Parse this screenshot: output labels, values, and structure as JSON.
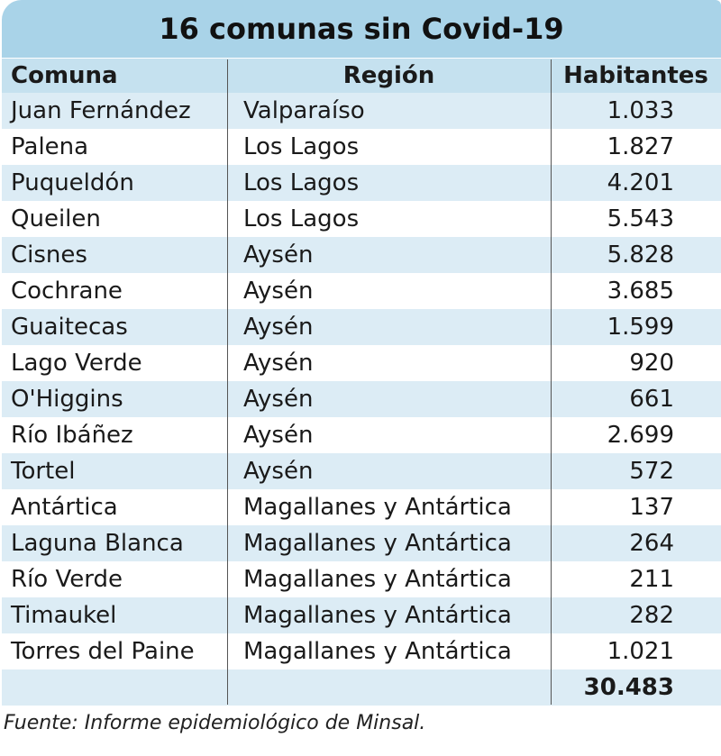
{
  "title": "16 comunas sin Covid-19",
  "columns": [
    "Comuna",
    "Región",
    "Habitantes"
  ],
  "rows": [
    [
      "Juan Fernández",
      "Valparaíso",
      "1.033"
    ],
    [
      "Palena",
      "Los Lagos",
      "1.827"
    ],
    [
      "Puqueldón",
      "Los Lagos",
      "4.201"
    ],
    [
      "Queilen",
      "Los Lagos",
      "5.543"
    ],
    [
      "Cisnes",
      "Aysén",
      "5.828"
    ],
    [
      "Cochrane",
      "Aysén",
      "3.685"
    ],
    [
      "Guaitecas",
      "Aysén",
      "1.599"
    ],
    [
      "Lago Verde",
      "Aysén",
      "920"
    ],
    [
      "O'Higgins",
      "Aysén",
      "661"
    ],
    [
      "Río Ibáñez",
      "Aysén",
      "2.699"
    ],
    [
      "Tortel",
      "Aysén",
      "572"
    ],
    [
      "Antártica",
      "Magallanes y Antártica",
      "137"
    ],
    [
      "Laguna Blanca",
      "Magallanes y Antártica",
      "264"
    ],
    [
      "Río Verde",
      "Magallanes y Antártica",
      "211"
    ],
    [
      "Timaukel",
      "Magallanes y Antártica",
      "282"
    ],
    [
      "Torres del Paine",
      "Magallanes y Antártica",
      "1.021"
    ]
  ],
  "total": "30.483",
  "source": "Fuente: Informe epidemiológico de Minsal."
}
